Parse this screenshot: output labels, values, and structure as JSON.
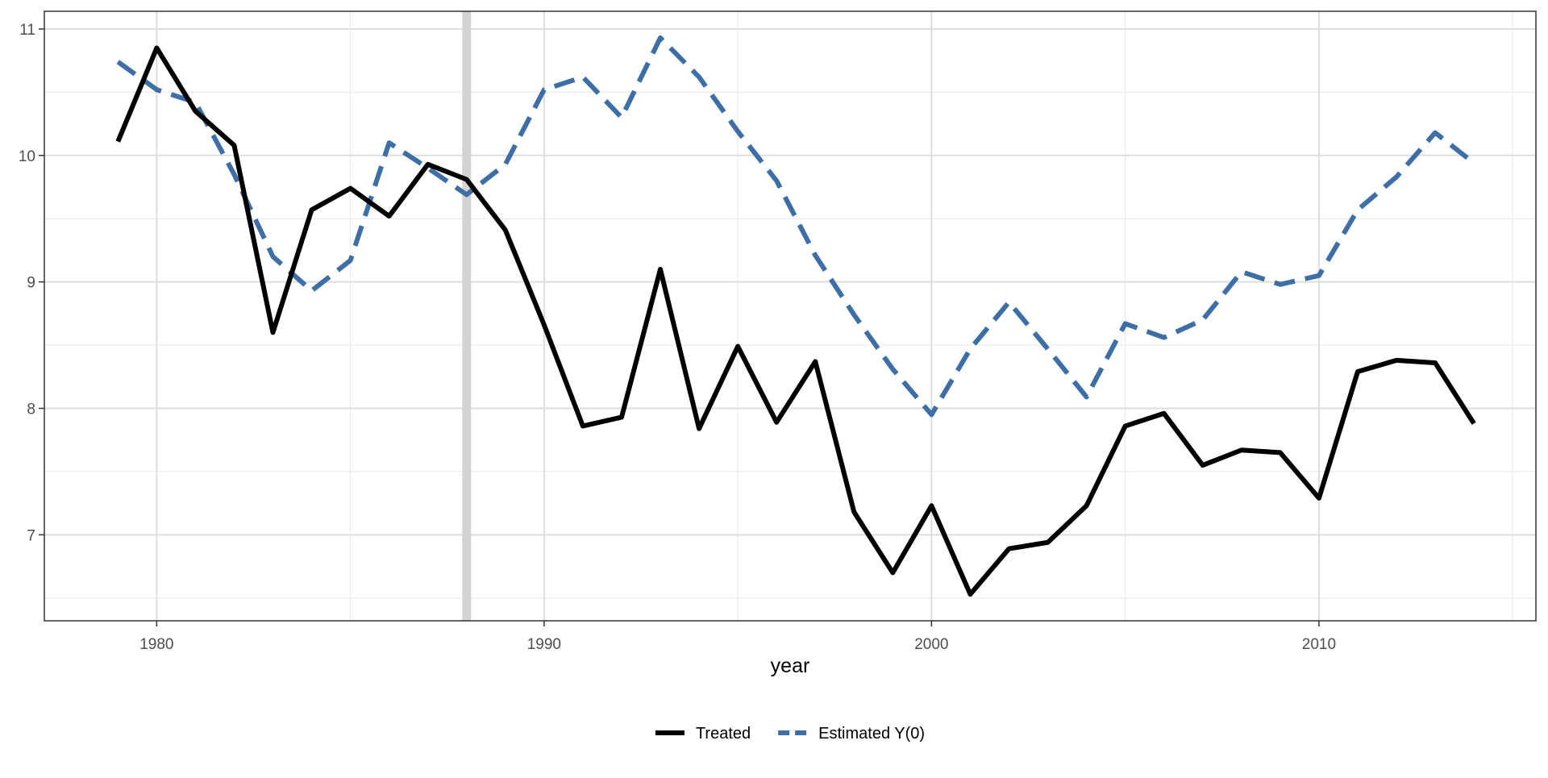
{
  "chart_data": {
    "type": "line",
    "title": "",
    "xlabel": "year",
    "ylabel": "",
    "xlim": [
      1977.1,
      2015.6
    ],
    "ylim": [
      6.32,
      11.14
    ],
    "xticks": [
      1980,
      1990,
      2000,
      2010
    ],
    "xtick_labels": [
      "1980",
      "1990",
      "2000",
      "2010"
    ],
    "yticks": [
      7,
      8,
      9,
      10,
      11
    ],
    "ytick_labels": [
      "7",
      "8",
      "9",
      "10",
      "11"
    ],
    "grid": true,
    "legend_position": "bottom",
    "treatment_start": 1988,
    "x": [
      1979,
      1980,
      1981,
      1982,
      1983,
      1984,
      1985,
      1986,
      1987,
      1988,
      1989,
      1990,
      1991,
      1992,
      1993,
      1994,
      1995,
      1996,
      1997,
      1998,
      1999,
      2000,
      2001,
      2002,
      2003,
      2004,
      2005,
      2006,
      2007,
      2008,
      2009,
      2010,
      2011,
      2012,
      2013,
      2014
    ],
    "series": [
      {
        "name": "Treated",
        "color": "#000000",
        "dash": "solid",
        "values": [
          10.11,
          10.85,
          10.35,
          10.08,
          8.6,
          9.57,
          9.74,
          9.52,
          9.93,
          9.81,
          9.41,
          8.66,
          7.86,
          7.93,
          9.1,
          7.84,
          8.49,
          7.89,
          8.37,
          7.18,
          6.7,
          7.23,
          6.53,
          6.89,
          6.94,
          7.23,
          7.86,
          7.96,
          7.55,
          7.67,
          7.65,
          7.29,
          8.29,
          8.38,
          8.36,
          7.88
        ]
      },
      {
        "name": "Estimated Y(0)",
        "color": "#3d6fa6",
        "dash": "dashed",
        "values": [
          10.74,
          10.52,
          10.42,
          9.85,
          9.2,
          8.93,
          9.17,
          10.1,
          9.9,
          9.69,
          9.93,
          10.52,
          10.62,
          10.3,
          10.93,
          10.62,
          10.19,
          9.8,
          9.21,
          8.74,
          8.31,
          7.95,
          8.47,
          8.84,
          8.47,
          8.09,
          8.67,
          8.56,
          8.7,
          9.08,
          8.98,
          9.05,
          9.57,
          9.83,
          10.18,
          9.94
        ]
      }
    ]
  }
}
